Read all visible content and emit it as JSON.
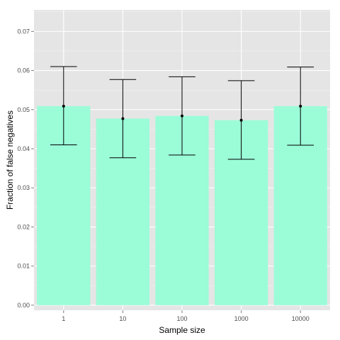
{
  "chart_data": {
    "type": "bar",
    "xlabel": "Sample size",
    "ylabel": "Fraction of false negatives",
    "categories": [
      "1",
      "10",
      "100",
      "1000",
      "10000"
    ],
    "values": [
      0.0509,
      0.0477,
      0.0484,
      0.0473,
      0.0509
    ],
    "error_low": [
      0.041,
      0.0377,
      0.0384,
      0.0373,
      0.0409
    ],
    "error_high": [
      0.061,
      0.0577,
      0.0584,
      0.0574,
      0.0609
    ],
    "ylim": [
      -0.0013,
      0.0755
    ],
    "yticks": [
      0.0,
      0.01,
      0.02,
      0.03,
      0.04,
      0.05,
      0.06,
      0.07
    ],
    "ytick_labels": [
      "0.00",
      "0.01",
      "0.02",
      "0.03",
      "0.04",
      "0.05",
      "0.06",
      "0.07"
    ],
    "grid": true,
    "colors": {
      "bar_fill": "#9BFCD8",
      "panel_bg": "#E5E5E5",
      "grid_major": "#FFFFFF",
      "grid_minor": "#F2F2F2",
      "error_bar": "#000000"
    }
  }
}
